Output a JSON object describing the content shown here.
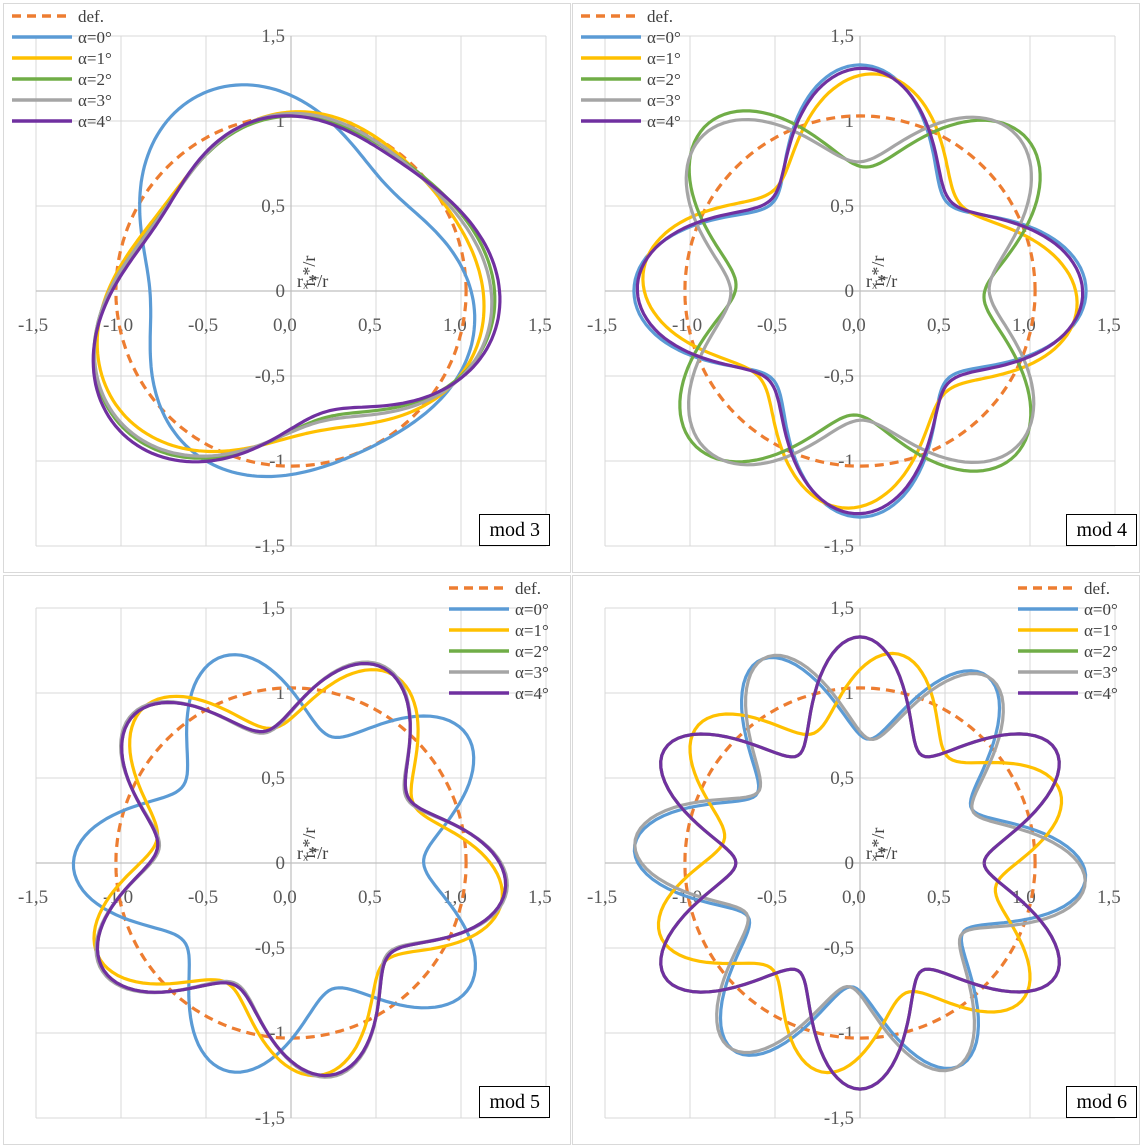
{
  "axis_labels": {
    "y": "rᵧ*/r",
    "x": "rₓ*/r"
  },
  "x_ticks": [
    "-1,5",
    "-1,0",
    "-0,5",
    "0,0",
    "0,5",
    "1,0",
    "1,5"
  ],
  "y_ticks": [
    "1,5",
    "1",
    "0,5",
    "0",
    "-0,5",
    "-1",
    "-1,5"
  ],
  "legend": [
    {
      "label": "def.",
      "color": "#ED7D31",
      "dash": true
    },
    {
      "label": "α=0°",
      "color": "#5B9BD5",
      "dash": false
    },
    {
      "label": "α=1°",
      "color": "#FFC000",
      "dash": false
    },
    {
      "label": "α=2°",
      "color": "#70AD47",
      "dash": false
    },
    {
      "label": "α=3°",
      "color": "#A5A5A5",
      "dash": false
    },
    {
      "label": "α=4°",
      "color": "#7030A0",
      "dash": false
    }
  ],
  "chart_data": [
    {
      "type": "scatter",
      "mode_label": "mod 3",
      "xlim": [
        -1.5,
        1.5
      ],
      "ylim": [
        -1.5,
        1.5
      ],
      "grid": true,
      "legend_position": "top-left",
      "xlabel": "rₓ*/r",
      "ylabel": "rᵧ*/r",
      "series": [
        {
          "name": "def.",
          "curve": {
            "a": 0,
            "phase": 0,
            "tilt": 0
          }
        },
        {
          "name": "α=0°",
          "curve": {
            "a": 0.12,
            "phase": 0.3,
            "tilt": -0.35
          }
        },
        {
          "name": "α=1°",
          "curve": {
            "a": 0.1,
            "phase": 1.3,
            "tilt": 0.3
          }
        },
        {
          "name": "α=2°",
          "curve": {
            "a": 0.12,
            "phase": 1.0,
            "tilt": 0.42
          }
        },
        {
          "name": "α=3°",
          "curve": {
            "a": 0.12,
            "phase": 1.1,
            "tilt": 0.38
          }
        },
        {
          "name": "α=4°",
          "curve": {
            "a": 0.14,
            "phase": 0.9,
            "tilt": 0.45
          }
        }
      ]
    },
    {
      "type": "scatter",
      "mode_label": "mod 4",
      "xlim": [
        -1.5,
        1.5
      ],
      "ylim": [
        -1.5,
        1.5
      ],
      "grid": true,
      "legend_position": "top-left",
      "xlabel": "rₓ*/r",
      "ylabel": "rᵧ*/r",
      "series": [
        {
          "name": "def.",
          "curve": {
            "a": 0,
            "phase": 0,
            "tilt": 0
          }
        },
        {
          "name": "α=0°",
          "curve": {
            "a": 0.3,
            "phase": 0.0,
            "tilt": 0
          }
        },
        {
          "name": "α=1°",
          "curve": {
            "a": 0.25,
            "phase": 0.3,
            "tilt": 0
          }
        },
        {
          "name": "α=2°",
          "curve": {
            "a": 0.3,
            "phase": 3.3,
            "tilt": 0
          }
        },
        {
          "name": "α=3°",
          "curve": {
            "a": 0.27,
            "phase": 3.1,
            "tilt": 0
          }
        },
        {
          "name": "α=4°",
          "curve": {
            "a": 0.28,
            "phase": 0.05,
            "tilt": 0
          }
        }
      ]
    },
    {
      "type": "scatter",
      "mode_label": "mod 5",
      "xlim": [
        -1.5,
        1.5
      ],
      "ylim": [
        -1.5,
        1.5
      ],
      "grid": true,
      "legend_position": "top-right",
      "xlabel": "rₓ*/r",
      "ylabel": "rᵧ*/r",
      "series": [
        {
          "name": "def.",
          "curve": {
            "a": 0,
            "phase": 0,
            "tilt": 0
          }
        },
        {
          "name": "α=0°",
          "curve": {
            "a": 0.25,
            "phase": 3.1,
            "tilt": 0
          }
        },
        {
          "name": "α=1°",
          "curve": {
            "a": 0.23,
            "phase": 0.9,
            "tilt": 0
          }
        },
        {
          "name": "α=2°",
          "curve": {
            "a": 0.24,
            "phase": 0.6,
            "tilt": 0
          }
        },
        {
          "name": "α=3°",
          "curve": {
            "a": 0.25,
            "phase": 0.6,
            "tilt": 0
          }
        },
        {
          "name": "α=4°",
          "curve": {
            "a": 0.24,
            "phase": 0.6,
            "tilt": 0
          }
        }
      ]
    },
    {
      "type": "scatter",
      "mode_label": "mod 6",
      "xlim": [
        -1.5,
        1.5
      ],
      "ylim": [
        -1.5,
        1.5
      ],
      "grid": true,
      "legend_position": "top-right",
      "xlabel": "rₓ*/r",
      "ylabel": "rᵧ*/r",
      "series": [
        {
          "name": "def.",
          "curve": {
            "a": 0,
            "phase": 0,
            "tilt": 0
          }
        },
        {
          "name": "α=0°",
          "curve": {
            "a": 0.3,
            "phase": 0.4,
            "tilt": 0
          }
        },
        {
          "name": "α=1°",
          "curve": {
            "a": 0.22,
            "phase": 4.2,
            "tilt": 0
          }
        },
        {
          "name": "α=2°",
          "curve": {
            "a": 0.3,
            "phase": 3.14,
            "tilt": 0
          }
        },
        {
          "name": "α=3°",
          "curve": {
            "a": 0.3,
            "phase": 0.55,
            "tilt": 0
          }
        },
        {
          "name": "α=4°",
          "curve": {
            "a": 0.3,
            "phase": 3.14,
            "tilt": 0
          }
        }
      ]
    }
  ]
}
